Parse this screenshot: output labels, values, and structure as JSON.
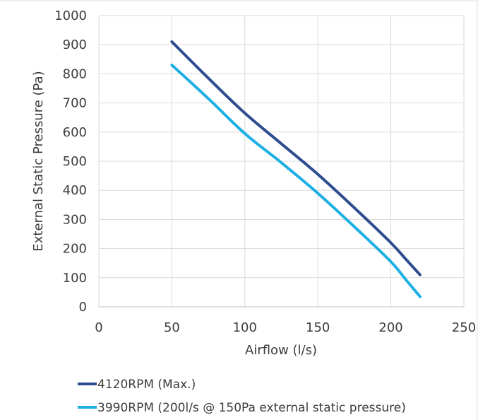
{
  "chart_data": {
    "type": "line",
    "title": "",
    "xlabel": "Airflow (l/s)",
    "ylabel": "External Static Pressure (Pa)",
    "xlim": [
      0,
      250
    ],
    "ylim": [
      0,
      1000
    ],
    "xticks": [
      "0",
      "50",
      "100",
      "150",
      "200",
      "250"
    ],
    "yticks": [
      "0",
      "100",
      "200",
      "300",
      "400",
      "500",
      "600",
      "700",
      "800",
      "900",
      "1000"
    ],
    "grid": true,
    "legend_position": "bottom-left",
    "series": [
      {
        "name": "4120RPM (Max.)",
        "color": "#2e4d8f",
        "x": [
          50,
          75,
          100,
          125,
          150,
          175,
          200,
          210,
          220
        ],
        "y": [
          910,
          785,
          665,
          560,
          455,
          340,
          220,
          165,
          110
        ]
      },
      {
        "name": "3990RPM (200l/s @ 150Pa external static pressure)",
        "color": "#1eb0e4",
        "x": [
          50,
          75,
          100,
          125,
          150,
          175,
          200,
          210,
          220
        ],
        "y": [
          830,
          715,
          595,
          495,
          390,
          275,
          155,
          95,
          35
        ]
      }
    ]
  }
}
